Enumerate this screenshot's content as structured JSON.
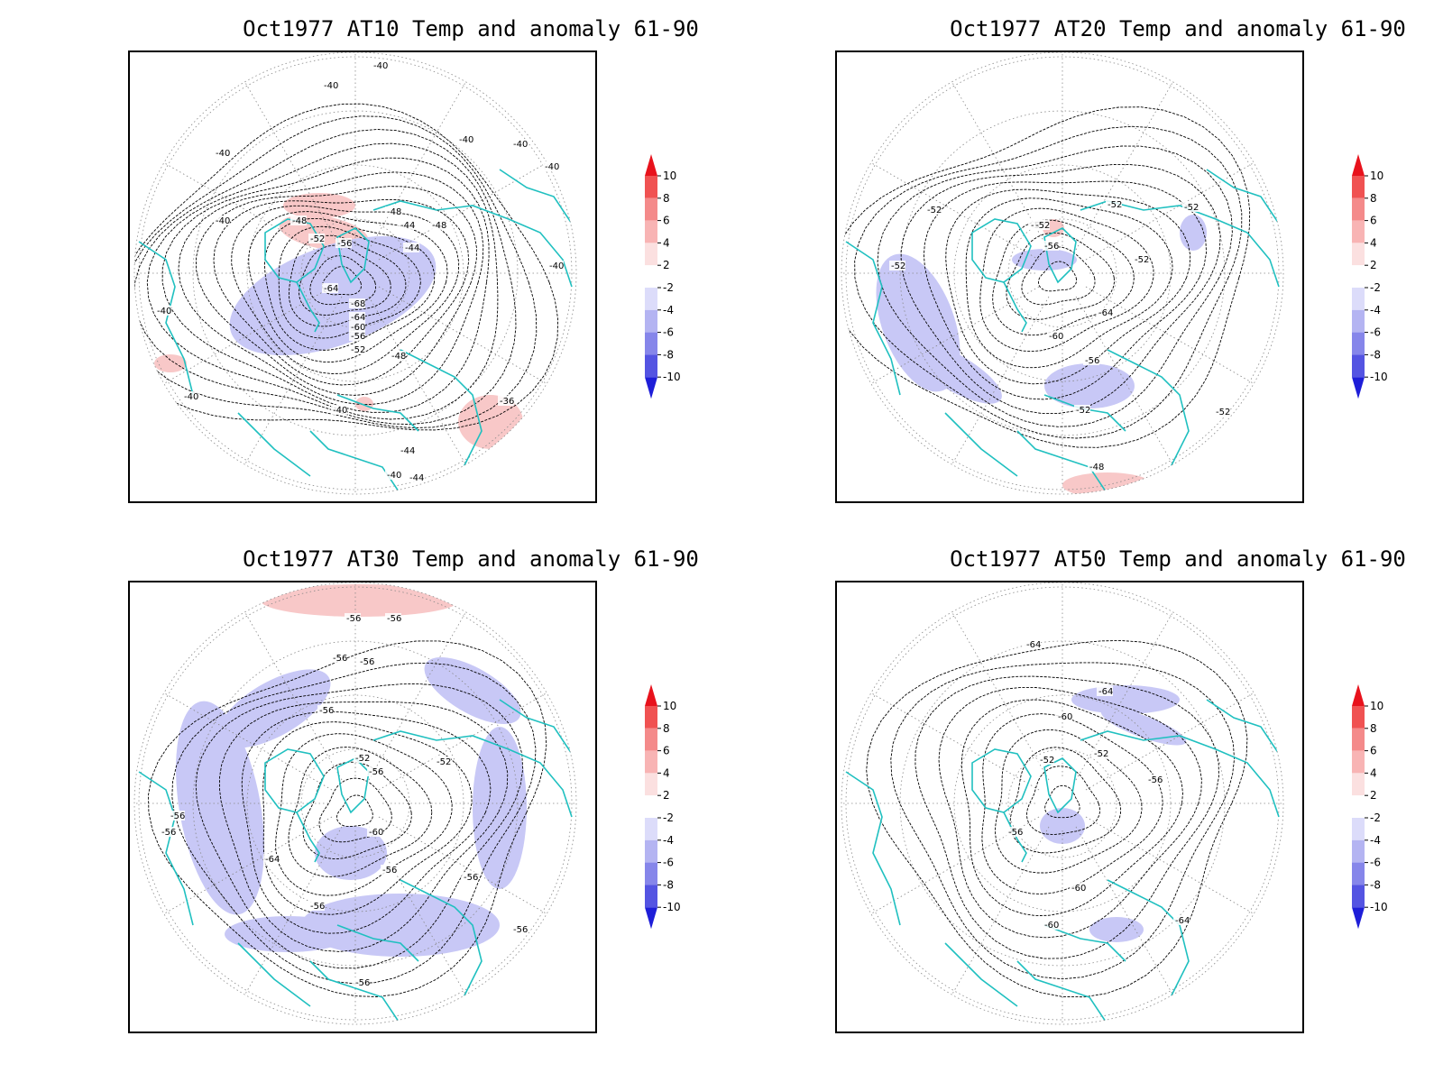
{
  "panels": [
    {
      "title": "Oct1977 AT10 Temp and anomaly 61-90",
      "contour_labels": [
        "-40",
        "-40",
        "-40",
        "-40",
        "-40",
        "-40",
        "-40",
        "-40",
        "-40",
        "-40",
        "-48",
        "-52",
        "-56",
        "-64",
        "-68",
        "-64",
        "-60",
        "-56",
        "-52",
        "-48",
        "-44",
        "-44",
        "-48",
        "-48",
        "-36",
        "-40",
        "-44",
        "-40",
        "-44"
      ]
    },
    {
      "title": "Oct1977 AT20 Temp and anomaly 61-90",
      "contour_labels": [
        "-52",
        "-52",
        "-52",
        "-52",
        "-52",
        "-56",
        "-52",
        "-64",
        "-60",
        "-56",
        "-52",
        "-52",
        "-48",
        "-52"
      ]
    },
    {
      "title": "Oct1977 AT30 Temp and anomaly 61-90",
      "contour_labels": [
        "-56",
        "-56",
        "-56",
        "-56",
        "-56",
        "-52",
        "-52",
        "-56",
        "-56",
        "-56",
        "-64",
        "-60",
        "-56",
        "-56",
        "-56",
        "-56",
        "-56"
      ]
    },
    {
      "title": "Oct1977 AT50 Temp and anomaly 61-90",
      "contour_labels": [
        "-64",
        "-64",
        "-60",
        "-52",
        "-52",
        "-56",
        "-56",
        "-60",
        "-60",
        "-64"
      ]
    }
  ],
  "colorbar": {
    "labels": [
      "10",
      "8",
      "6",
      "4",
      "2",
      "-2",
      "-4",
      "-6",
      "-8",
      "-10"
    ],
    "colors": [
      "#e8121c",
      "#f05252",
      "#f48a8a",
      "#f8b4b4",
      "#fbe0e0",
      "#ffffff",
      "#dcdcfa",
      "#b4b4f2",
      "#8686ea",
      "#5454e2",
      "#1e1ed8"
    ]
  },
  "colors": {
    "coastline": "#20c0c0",
    "contour": "#000000",
    "grid": "#888888",
    "warm_anomaly": "#f8c8c8",
    "cold_anomaly": "#c8c8f6"
  }
}
